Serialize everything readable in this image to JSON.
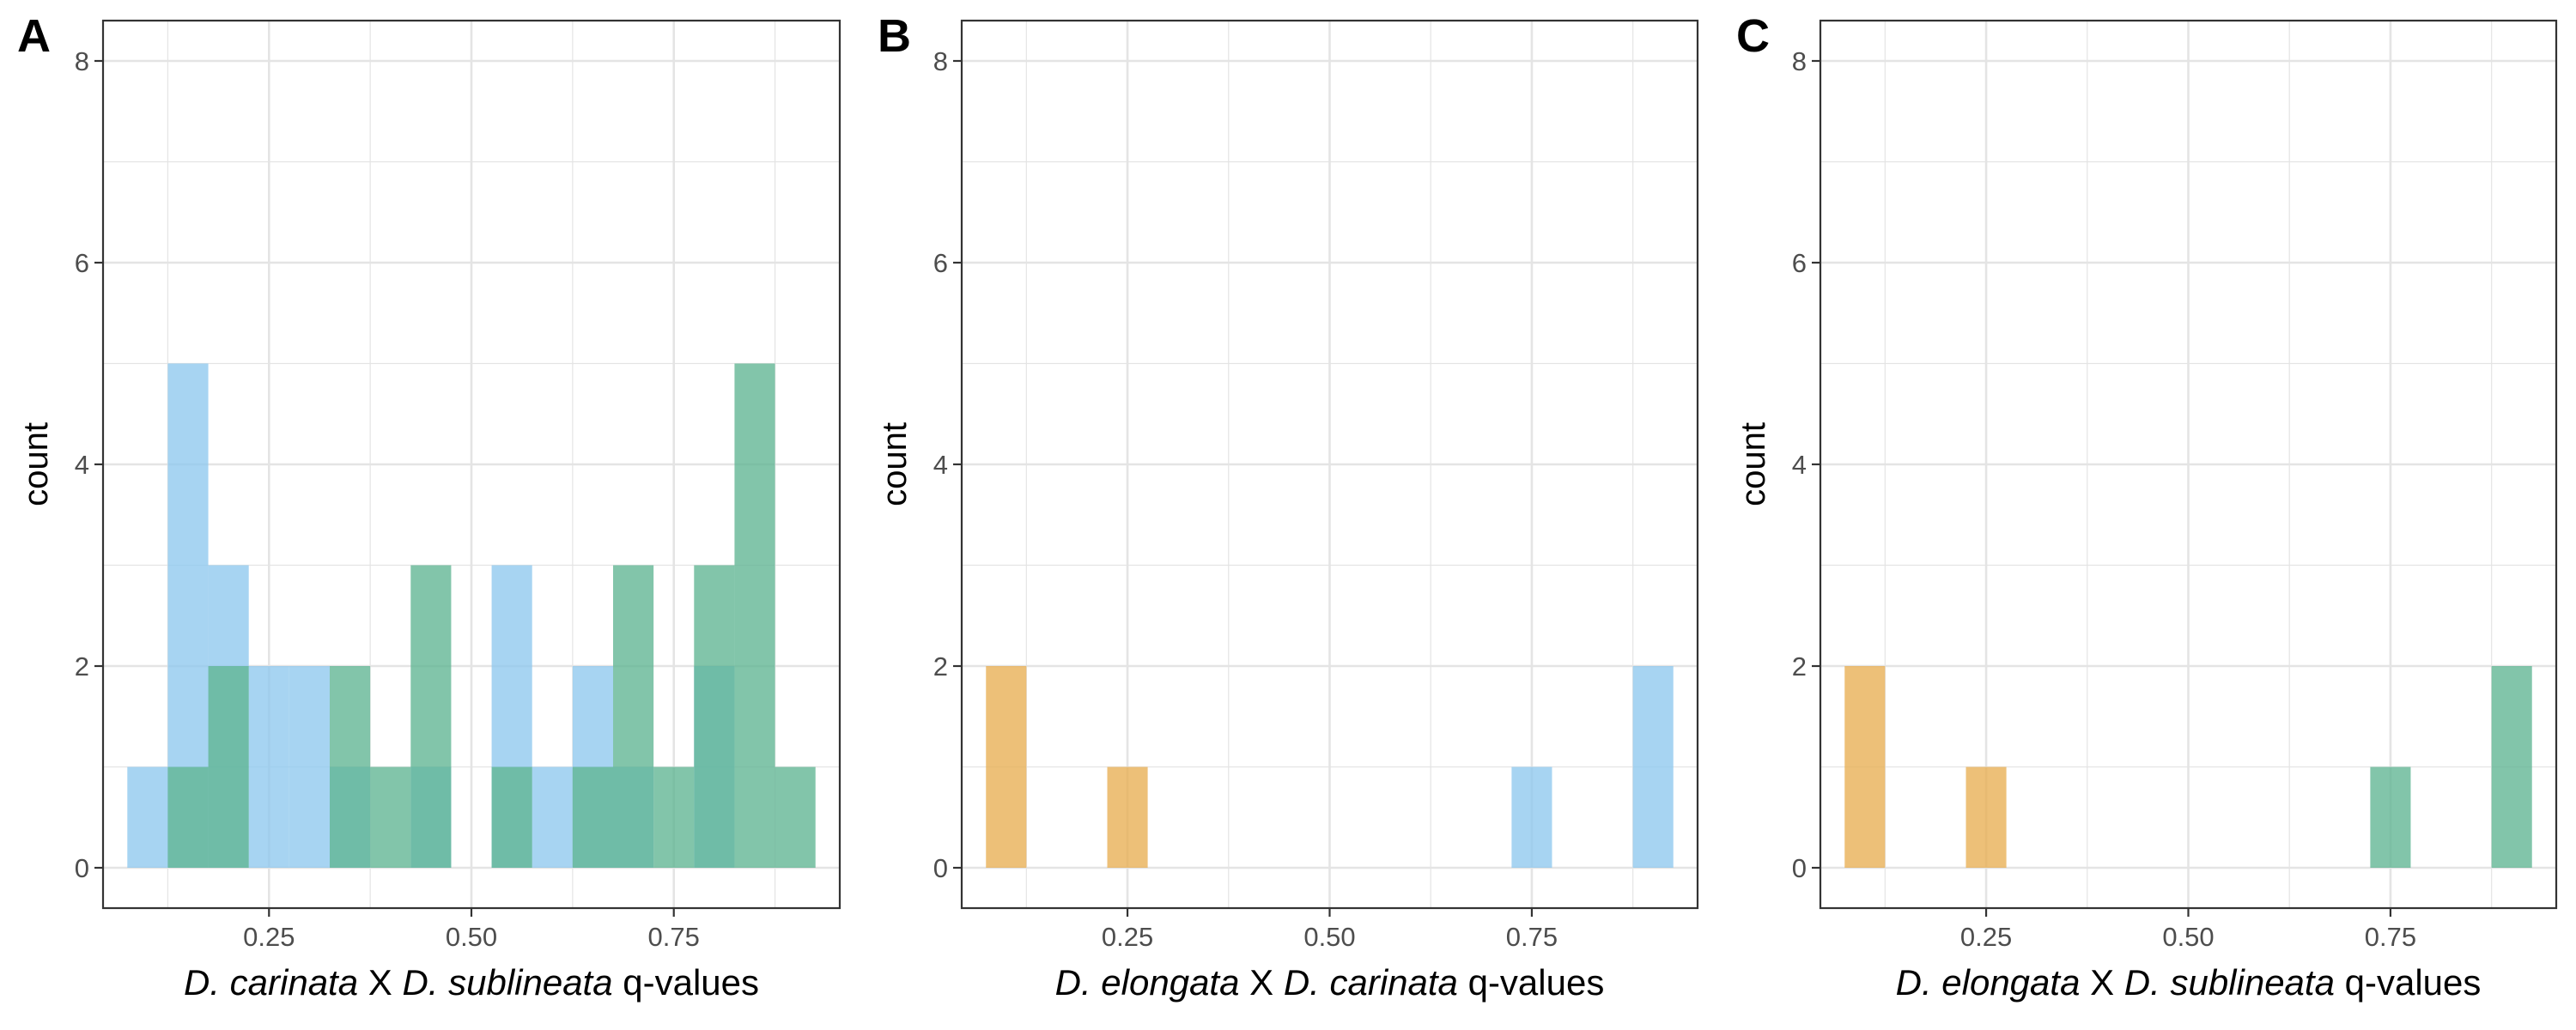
{
  "colors": {
    "blue": "#8ec8ee",
    "green": "#5fb592",
    "orange": "#e8ae52",
    "grid": "#e4e4e4",
    "axis": "#333333",
    "text": "#000000",
    "tick_text": "#4d4d4d"
  },
  "chart_data": [
    {
      "type": "bar",
      "panel_label": "A",
      "xlabel": {
        "italic1": "D. carinata",
        "sep": " X ",
        "italic2": "D. sublineata",
        "suffix": " q-values"
      },
      "ylabel": "count",
      "x_ticks": [
        "0.25",
        "0.50",
        "0.75"
      ],
      "x_tick_values": [
        0.25,
        0.5,
        0.75
      ],
      "y_ticks": [
        "0",
        "2",
        "4",
        "6",
        "8"
      ],
      "y_tick_values": [
        0,
        2,
        4,
        6,
        8
      ],
      "xlim": [
        0.045,
        0.955
      ],
      "ylim": [
        -0.4,
        8.4
      ],
      "bin_width": 0.05,
      "grid": true,
      "series": [
        {
          "color": "blue",
          "bins": [
            [
              0.1,
              1
            ],
            [
              0.15,
              5
            ],
            [
              0.2,
              3
            ],
            [
              0.25,
              2
            ],
            [
              0.3,
              2
            ],
            [
              0.35,
              1
            ],
            [
              0.45,
              1
            ],
            [
              0.55,
              3
            ],
            [
              0.6,
              1
            ],
            [
              0.65,
              2
            ],
            [
              0.7,
              1
            ],
            [
              0.8,
              2
            ]
          ]
        },
        {
          "color": "green",
          "bins": [
            [
              0.15,
              1
            ],
            [
              0.2,
              2
            ],
            [
              0.35,
              2
            ],
            [
              0.4,
              1
            ],
            [
              0.45,
              3
            ],
            [
              0.55,
              1
            ],
            [
              0.65,
              1
            ],
            [
              0.7,
              3
            ],
            [
              0.75,
              1
            ],
            [
              0.8,
              3
            ],
            [
              0.85,
              5
            ],
            [
              0.9,
              1
            ]
          ]
        }
      ]
    },
    {
      "type": "bar",
      "panel_label": "B",
      "xlabel": {
        "italic1": "D. elongata",
        "sep": " X  ",
        "italic2": "D. carinata",
        "suffix": " q-values"
      },
      "ylabel": "count",
      "x_ticks": [
        "0.25",
        "0.50",
        "0.75"
      ],
      "x_tick_values": [
        0.25,
        0.5,
        0.75
      ],
      "y_ticks": [
        "0",
        "2",
        "4",
        "6",
        "8"
      ],
      "y_tick_values": [
        0,
        2,
        4,
        6,
        8
      ],
      "xlim": [
        0.045,
        0.955
      ],
      "ylim": [
        -0.4,
        8.4
      ],
      "bin_width": 0.05,
      "grid": true,
      "series": [
        {
          "color": "orange",
          "bins": [
            [
              0.1,
              2
            ],
            [
              0.25,
              1
            ]
          ]
        },
        {
          "color": "blue",
          "bins": [
            [
              0.75,
              1
            ],
            [
              0.9,
              2
            ]
          ]
        }
      ]
    },
    {
      "type": "bar",
      "panel_label": "C",
      "xlabel": {
        "italic1": "D. elongata",
        "sep": " X  ",
        "italic2": "D. sublineata",
        "suffix": " q-values"
      },
      "ylabel": "count",
      "x_ticks": [
        "0.25",
        "0.50",
        "0.75"
      ],
      "x_tick_values": [
        0.25,
        0.5,
        0.75
      ],
      "y_ticks": [
        "0",
        "2",
        "4",
        "6",
        "8"
      ],
      "y_tick_values": [
        0,
        2,
        4,
        6,
        8
      ],
      "xlim": [
        0.045,
        0.955
      ],
      "ylim": [
        -0.4,
        8.4
      ],
      "bin_width": 0.05,
      "grid": true,
      "series": [
        {
          "color": "orange",
          "bins": [
            [
              0.1,
              2
            ],
            [
              0.25,
              1
            ]
          ]
        },
        {
          "color": "green",
          "bins": [
            [
              0.75,
              1
            ],
            [
              0.9,
              2
            ]
          ]
        }
      ]
    }
  ]
}
